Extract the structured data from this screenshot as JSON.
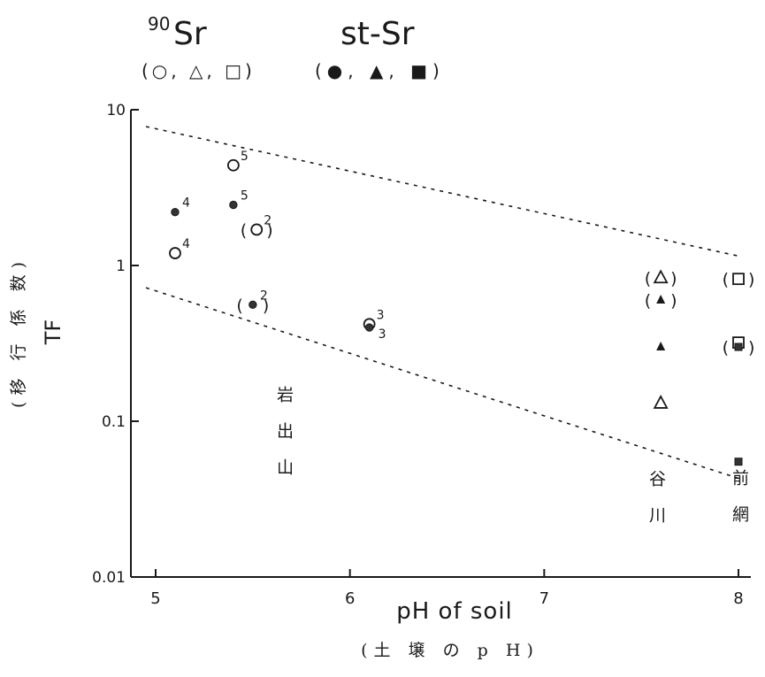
{
  "chart_data": {
    "type": "scatter",
    "title": "",
    "xlabel": "pH of soil",
    "xlabel_sub": "(土 壌 の p H)",
    "ylabel": "TF",
    "ylabel_sub": "(移 行 係 数)",
    "yscale": "log",
    "xlim": [
      4.8,
      8.1
    ],
    "ylim": [
      0.01,
      10
    ],
    "x_ticks": [
      "5",
      "6",
      "7",
      "8"
    ],
    "y_ticks": [
      "0.01",
      "0.1",
      "1",
      "10"
    ],
    "legend": {
      "sr90_label": "Sr",
      "sr90_sup": "90",
      "sr90_symbols": "(○, △, □)",
      "stsr_label": "st-Sr",
      "stsr_symbols": "(●, ▲, ■)"
    },
    "sites": [
      "岩出山",
      "谷川",
      "前網"
    ],
    "series": [
      {
        "name": "90Sr",
        "points": [
          {
            "x": 5.4,
            "y": 4.4,
            "marker": "circle-open",
            "label": "5"
          },
          {
            "x": 5.1,
            "y": 1.2,
            "marker": "circle-open",
            "label": "4"
          },
          {
            "x": 5.52,
            "y": 1.7,
            "marker": "circle-open",
            "label": "2",
            "paren": true
          },
          {
            "x": 6.1,
            "y": 0.42,
            "marker": "circle-open",
            "label": "3"
          },
          {
            "x": 7.6,
            "y": 0.83,
            "marker": "triangle-open",
            "label": "",
            "paren": true
          },
          {
            "x": 7.6,
            "y": 0.13,
            "marker": "triangle-open",
            "label": ""
          },
          {
            "x": 8.0,
            "y": 0.82,
            "marker": "square-open",
            "label": "",
            "paren": true
          },
          {
            "x": 8.0,
            "y": 0.32,
            "marker": "square-open",
            "label": ""
          }
        ]
      },
      {
        "name": "st-Sr",
        "points": [
          {
            "x": 5.1,
            "y": 2.2,
            "marker": "circle-filled",
            "label": "4"
          },
          {
            "x": 5.4,
            "y": 2.45,
            "marker": "circle-filled",
            "label": "5"
          },
          {
            "x": 5.5,
            "y": 0.56,
            "marker": "circle-filled",
            "label": "2",
            "paren": true
          },
          {
            "x": 6.1,
            "y": 0.4,
            "marker": "circle-filled",
            "label": "3"
          },
          {
            "x": 7.6,
            "y": 0.6,
            "marker": "triangle-filled",
            "label": "",
            "paren": true
          },
          {
            "x": 7.6,
            "y": 0.3,
            "marker": "triangle-filled",
            "label": ""
          },
          {
            "x": 8.0,
            "y": 0.3,
            "marker": "square-filled",
            "label": "",
            "paren": true
          },
          {
            "x": 8.0,
            "y": 0.055,
            "marker": "square-filled",
            "label": ""
          }
        ]
      }
    ],
    "bounds": [
      {
        "x": [
          4.95,
          8.0
        ],
        "y": [
          7.8,
          1.15
        ]
      },
      {
        "x": [
          4.95,
          8.0
        ],
        "y": [
          0.72,
          0.043
        ]
      }
    ]
  }
}
